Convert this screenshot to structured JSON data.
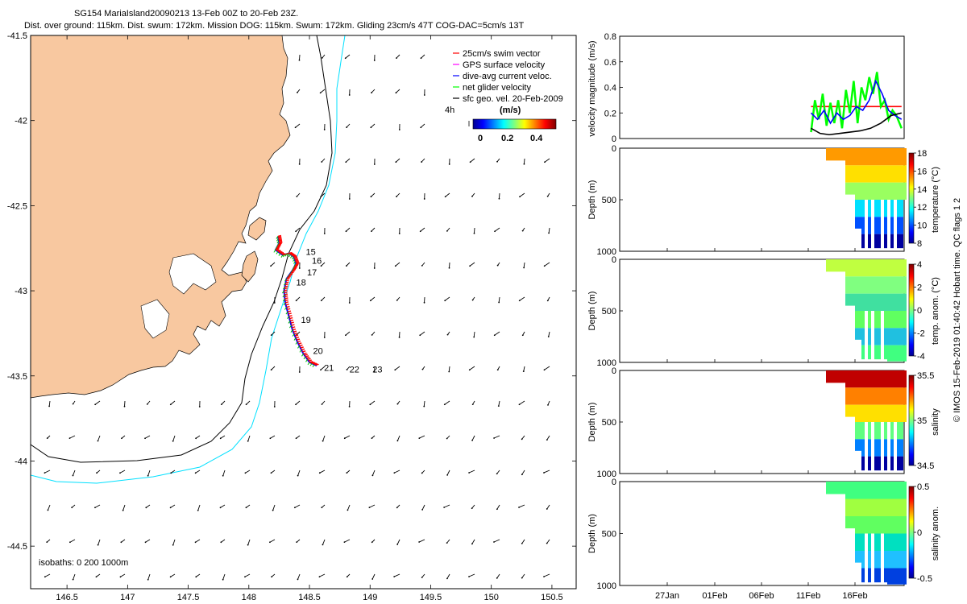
{
  "title": {
    "line1": "SG154 MariaIsland20090213 13-Feb 00Z to 20-Feb 23Z.",
    "line2": "Dist. over ground: 115km. Dist. swum: 172km. Mission DOG: 115km. Swum: 172km. Gliding 23cm/s 47T COG-DAC=5cm/s 13T"
  },
  "colors": {
    "land": "#f8c8a0",
    "swim": "#ff0000",
    "gps": "#ff00ff",
    "dac": "#0000ff",
    "net": "#00ff00",
    "geo": "#000000",
    "iso200": "#000000",
    "iso1000": "#00e0ff"
  },
  "chart_data": [
    {
      "type": "map",
      "name": "track-map",
      "xlim": [
        146.2,
        150.7
      ],
      "ylim": [
        -44.75,
        -41.5
      ],
      "x_ticks": [
        146.5,
        147,
        147.5,
        148,
        148.5,
        149,
        149.5,
        150,
        150.5
      ],
      "x_tick_labels": [
        "146.5",
        "147",
        "147.5",
        "148",
        "148.5",
        "149",
        "149.5",
        "150",
        "150.5"
      ],
      "y_ticks": [
        -41.5,
        -42,
        -42.5,
        -43,
        -43.5,
        -44,
        -44.5
      ],
      "y_tick_labels": [
        "-41.5",
        "-42",
        "-42.5",
        "-43",
        "-43.5",
        "-44",
        "-44.5"
      ],
      "legend": {
        "placement": "top-right",
        "entries": [
          "25cm/s swim vector",
          "GPS surface velocity",
          "dive-avg current veloc.",
          "net glider velocity",
          "sfc geo. vel. 20-Feb-2009"
        ],
        "scale_label": "4h",
        "units": "(m/s)",
        "colorbar_ticks": [
          "0",
          "0.2",
          "0.4"
        ]
      },
      "isobath_label": "isobaths: 0   200  1000m",
      "day_labels": [
        {
          "label": "15",
          "lon": 148.47,
          "lat": -42.79
        },
        {
          "label": "16",
          "lon": 148.52,
          "lat": -42.84
        },
        {
          "label": "17",
          "lon": 148.48,
          "lat": -42.91
        },
        {
          "label": "18",
          "lon": 148.39,
          "lat": -42.97
        },
        {
          "label": "19",
          "lon": 148.43,
          "lat": -43.19
        },
        {
          "label": "20",
          "lon": 148.53,
          "lat": -43.37
        },
        {
          "label": "21",
          "lon": 148.62,
          "lat": -43.47
        },
        {
          "label": "22",
          "lon": 148.83,
          "lat": -43.48
        },
        {
          "label": "23",
          "lon": 149.02,
          "lat": -43.48
        }
      ],
      "track": [
        [
          148.24,
          -42.68
        ],
        [
          148.25,
          -42.72
        ],
        [
          148.22,
          -42.76
        ],
        [
          148.28,
          -42.79
        ],
        [
          148.33,
          -42.78
        ],
        [
          148.37,
          -42.8
        ],
        [
          148.39,
          -42.84
        ],
        [
          148.36,
          -42.88
        ],
        [
          148.31,
          -42.93
        ],
        [
          148.29,
          -43.0
        ],
        [
          148.3,
          -43.07
        ],
        [
          148.33,
          -43.15
        ],
        [
          148.36,
          -43.23
        ],
        [
          148.4,
          -43.3
        ],
        [
          148.45,
          -43.37
        ],
        [
          148.5,
          -43.42
        ],
        [
          148.56,
          -43.44
        ]
      ]
    },
    {
      "type": "line",
      "name": "velocity-magnitude",
      "ylabel": "velocity magnitude (m/s)",
      "ylim": [
        0,
        0.8
      ],
      "y_ticks": [
        0,
        0.2,
        0.4,
        0.6,
        0.8
      ],
      "y_tick_labels": [
        "0",
        "0.2",
        "0.4",
        "0.6",
        "0.8"
      ],
      "x_time_range": [
        20,
        42
      ],
      "series": [
        {
          "color": "#ff0000",
          "x": [
            34.8,
            35.8,
            36.8,
            37.8,
            38.8,
            39.8,
            40.8,
            41.8
          ],
          "values": [
            0.25,
            0.25,
            0.25,
            0.25,
            0.25,
            0.25,
            0.25,
            0.25
          ]
        },
        {
          "color": "#00ff00",
          "x": [
            34.8,
            35.1,
            35.4,
            35.7,
            36.0,
            36.3,
            36.6,
            36.9,
            37.2,
            37.5,
            37.8,
            38.1,
            38.4,
            38.7,
            39.0,
            39.3,
            39.6,
            39.9,
            40.2,
            40.5,
            40.8,
            41.1,
            41.4,
            41.8
          ],
          "values": [
            0.05,
            0.3,
            0.15,
            0.35,
            0.1,
            0.28,
            0.12,
            0.3,
            0.08,
            0.38,
            0.2,
            0.45,
            0.12,
            0.4,
            0.3,
            0.48,
            0.35,
            0.52,
            0.25,
            0.3,
            0.15,
            0.22,
            0.18,
            0.08
          ]
        },
        {
          "color": "#0000ff",
          "x": [
            34.8,
            35.3,
            35.8,
            36.3,
            36.8,
            37.3,
            37.8,
            38.3,
            38.8,
            39.3,
            39.8,
            40.3,
            40.8,
            41.3,
            41.8
          ],
          "values": [
            0.2,
            0.15,
            0.22,
            0.12,
            0.2,
            0.15,
            0.18,
            0.25,
            0.22,
            0.3,
            0.45,
            0.35,
            0.22,
            0.18,
            0.15
          ]
        },
        {
          "color": "#000000",
          "x": [
            34.8,
            35.5,
            36.2,
            37.0,
            37.8,
            38.6,
            39.4,
            40.2,
            41.0,
            41.8
          ],
          "values": [
            0.08,
            0.04,
            0.03,
            0.04,
            0.05,
            0.06,
            0.08,
            0.12,
            0.18,
            0.2
          ]
        }
      ]
    },
    {
      "type": "heatmap",
      "name": "temperature",
      "ylabel": "Depth (m)",
      "y_ticks": [
        "0",
        "500",
        "1000"
      ],
      "colorbar_label": "temperature (°C)",
      "colorbar_ticks": [
        "8",
        "10",
        "12",
        "14",
        "16",
        "18"
      ]
    },
    {
      "type": "heatmap",
      "name": "temp-anomaly",
      "ylabel": "Depth (m)",
      "y_ticks": [
        "0",
        "500",
        "1000"
      ],
      "colorbar_label": "temp. anom. (°C)",
      "colorbar_ticks": [
        "-4",
        "-2",
        "0",
        "2",
        "4"
      ]
    },
    {
      "type": "heatmap",
      "name": "salinity",
      "ylabel": "Depth (m)",
      "y_ticks": [
        "0",
        "500",
        "1000"
      ],
      "colorbar_label": "salinity",
      "colorbar_ticks": [
        "34.5",
        "35",
        "35.5"
      ]
    },
    {
      "type": "heatmap",
      "name": "salinity-anomaly",
      "ylabel": "Depth (m)",
      "y_ticks": [
        "0",
        "500",
        "1000"
      ],
      "colorbar_label": "salinity anom.",
      "colorbar_ticks": [
        "-0.5",
        "0",
        "0.5"
      ],
      "x_tick_labels": [
        "27Jan",
        "01Feb",
        "06Feb",
        "11Feb",
        "16Feb"
      ]
    }
  ],
  "credit": "© IMOS 15-Feb-2019 01:40:42 Hobart time. QC flags 1  2"
}
